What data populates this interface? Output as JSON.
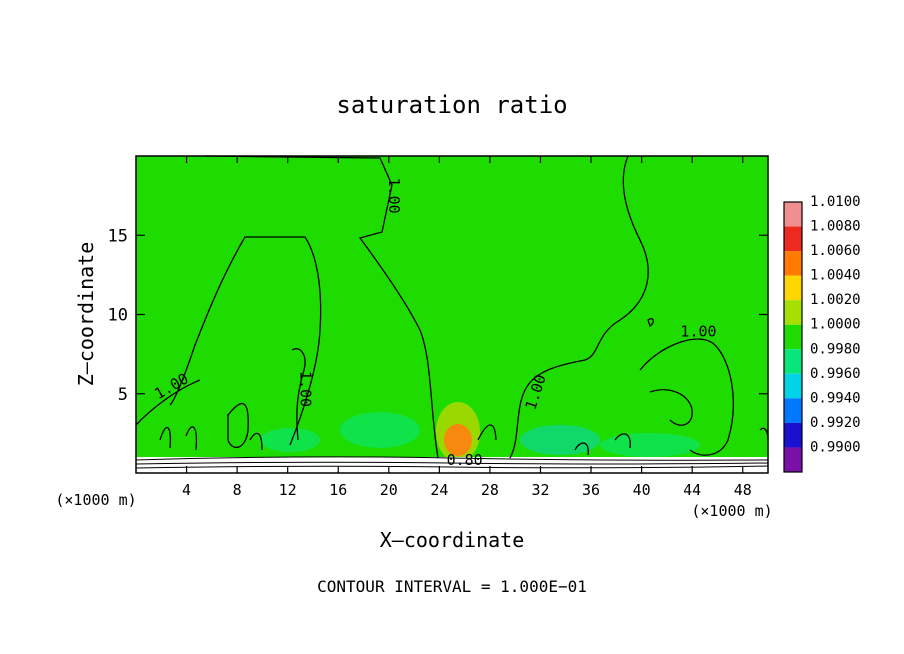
{
  "chart_data": {
    "type": "heatmap",
    "title": "saturation ratio",
    "xlabel": "X–coordinate",
    "ylabel": "Z–coordinate",
    "x_unit_left": "(×1000 m)",
    "x_unit_right": "(×1000 m)",
    "footer": "CONTOUR INTERVAL = 1.000E−01",
    "xlim": [
      0,
      50
    ],
    "ylim": [
      0,
      20
    ],
    "x_ticks": [
      4,
      8,
      12,
      16,
      20,
      24,
      28,
      32,
      36,
      40,
      44,
      48
    ],
    "y_ticks": [
      5,
      10,
      15
    ],
    "contour_labels": [
      {
        "text": "1.00",
        "x": 20,
        "y": 17.5,
        "rot": 90
      },
      {
        "text": "1.00",
        "x": 3,
        "y": 5.2,
        "rot": -30
      },
      {
        "text": "1.00",
        "x": 13,
        "y": 5.3,
        "rot": 90
      },
      {
        "text": "1.00",
        "x": 32,
        "y": 5.0,
        "rot": -72
      },
      {
        "text": "1.00",
        "x": 44.5,
        "y": 8.6,
        "rot": 0
      },
      {
        "text": "0.80",
        "x": 26,
        "y": 0.5,
        "rot": 0
      }
    ],
    "colorbar": {
      "levels": [
        "1.0100",
        "1.0080",
        "1.0060",
        "1.0040",
        "1.0020",
        "1.0000",
        "0.9980",
        "0.9960",
        "0.9940",
        "0.9920",
        "0.9900"
      ],
      "colors": [
        "#f08f8f",
        "#ee2a20",
        "#ff7a00",
        "#ffd700",
        "#a6e000",
        "#1fdc00",
        "#06e67a",
        "#00d4e8",
        "#0077ff",
        "#1a10d0",
        "#7a10a8"
      ]
    },
    "background_color": "#1fdc00"
  }
}
